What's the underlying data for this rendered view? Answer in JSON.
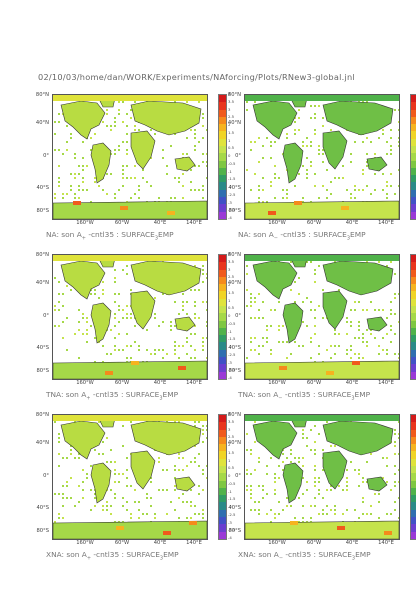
{
  "header": {
    "path": "02/10/03/home/dan/WORK/Experiments/NAforcing/Plots/RNew3-global.jnl"
  },
  "chart_data": {
    "type": "heatmap",
    "lat_labels": [
      "80°N",
      "40°N",
      "0°",
      "40°S",
      "80°S"
    ],
    "lon_labels": [
      "160°W",
      "60°W",
      "40°E",
      "140°E"
    ],
    "colorbar": {
      "ticks": [
        "4",
        "3.5",
        "3",
        "2.5",
        "2",
        "1.5",
        "1",
        "0.5",
        "0",
        "-0.5",
        "-1",
        "-1.5",
        "-2",
        "-2.5",
        "-3",
        "-3.5",
        "-4"
      ],
      "colors": [
        "#d41b1b",
        "#e8351e",
        "#f05a1c",
        "#f58a1c",
        "#f6b31f",
        "#f0d426",
        "#dfe33b",
        "#c5e34c",
        "#a5d848",
        "#7ec742",
        "#4fb24a",
        "#2f9c64",
        "#2a8a88",
        "#2f6fb0",
        "#4151c6",
        "#6a3fd0",
        "#9a39d6"
      ]
    },
    "panels": [
      {
        "id": "p1",
        "caption": "NA: son A",
        "caption_sub": "+",
        "caption_tail": " -cntl35 : SURFACE",
        "caption_sub2": "3",
        "caption_end": "EMP"
      },
      {
        "id": "p2",
        "caption": "NA: son A",
        "caption_sub": "−",
        "caption_tail": " -cntl35 : SURFACE",
        "caption_sub2": "3",
        "caption_end": "EMP"
      },
      {
        "id": "p3",
        "caption": "TNA: son A",
        "caption_sub": "+",
        "caption_tail": " -cntl35 : SURFACE",
        "caption_sub2": "3",
        "caption_end": "EMP"
      },
      {
        "id": "p4",
        "caption": "TNA: son A",
        "caption_sub": "−",
        "caption_tail": " -cntl35 : SURFACE",
        "caption_sub2": "3",
        "caption_end": "EMP"
      },
      {
        "id": "p5",
        "caption": "XNA: son A",
        "caption_sub": "+",
        "caption_tail": " -cntl35 : SURFACE",
        "caption_sub2": "3",
        "caption_end": "EMP"
      },
      {
        "id": "p6",
        "caption": "XNA: son A",
        "caption_sub": "−",
        "caption_tail": " -cntl35 : SURFACE",
        "caption_sub2": "3",
        "caption_end": "EMP"
      }
    ]
  }
}
